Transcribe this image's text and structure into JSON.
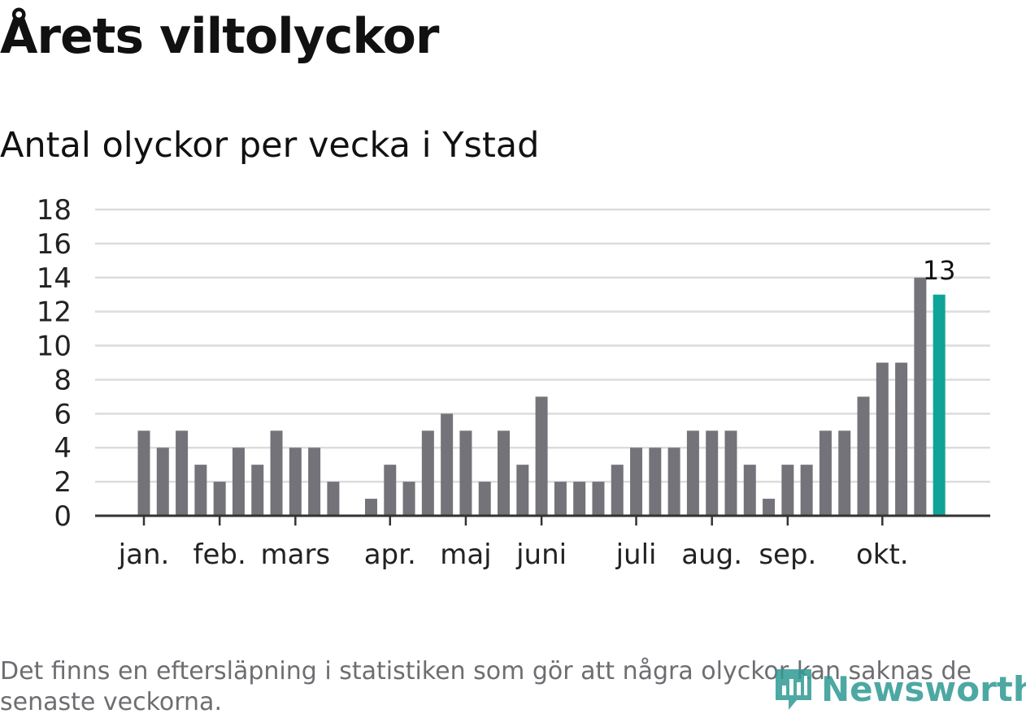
{
  "title": "Årets viltolyckor",
  "subtitle": "Antal olyckor per vecka i Ystad",
  "footnote": "Det finns en eftersläpning i statistiken som gör att några olyckor kan saknas de senaste veckorna.",
  "brand": {
    "name": "Newsworthy",
    "color": "#2f9a94"
  },
  "colors": {
    "bar": "#74737a",
    "highlight": "#0fa497",
    "grid": "#dcdcdc",
    "axis": "#333333"
  },
  "chart_data": {
    "type": "bar",
    "title": "Antal olyckor per vecka i Ystad",
    "xlabel": "",
    "ylabel": "",
    "ylim": [
      0,
      18
    ],
    "yticks": [
      0,
      2,
      4,
      6,
      8,
      10,
      12,
      14,
      16,
      18
    ],
    "grid": true,
    "weeks": [
      1,
      2,
      3,
      4,
      5,
      6,
      7,
      8,
      9,
      10,
      11,
      12,
      13,
      14,
      15,
      16,
      17,
      18,
      19,
      20,
      21,
      22,
      23,
      24,
      25,
      26,
      27,
      28,
      29,
      30,
      31,
      32,
      33,
      34,
      35,
      36,
      37,
      38,
      39,
      40,
      41,
      42,
      43
    ],
    "values": [
      5,
      4,
      5,
      3,
      2,
      4,
      3,
      5,
      4,
      4,
      2,
      0,
      1,
      3,
      2,
      5,
      6,
      5,
      2,
      5,
      3,
      7,
      2,
      2,
      2,
      3,
      4,
      4,
      4,
      5,
      5,
      5,
      3,
      1,
      3,
      3,
      5,
      5,
      7,
      9,
      9,
      14,
      13
    ],
    "highlight_index": 42,
    "highlight_label": "13",
    "month_labels": [
      {
        "label": "jan.",
        "week": 1
      },
      {
        "label": "feb.",
        "week": 5
      },
      {
        "label": "mars",
        "week": 9
      },
      {
        "label": "apr.",
        "week": 14
      },
      {
        "label": "maj",
        "week": 18
      },
      {
        "label": "juni",
        "week": 22
      },
      {
        "label": "juli",
        "week": 27
      },
      {
        "label": "aug.",
        "week": 31
      },
      {
        "label": "sep.",
        "week": 35
      },
      {
        "label": "okt.",
        "week": 40
      }
    ]
  }
}
